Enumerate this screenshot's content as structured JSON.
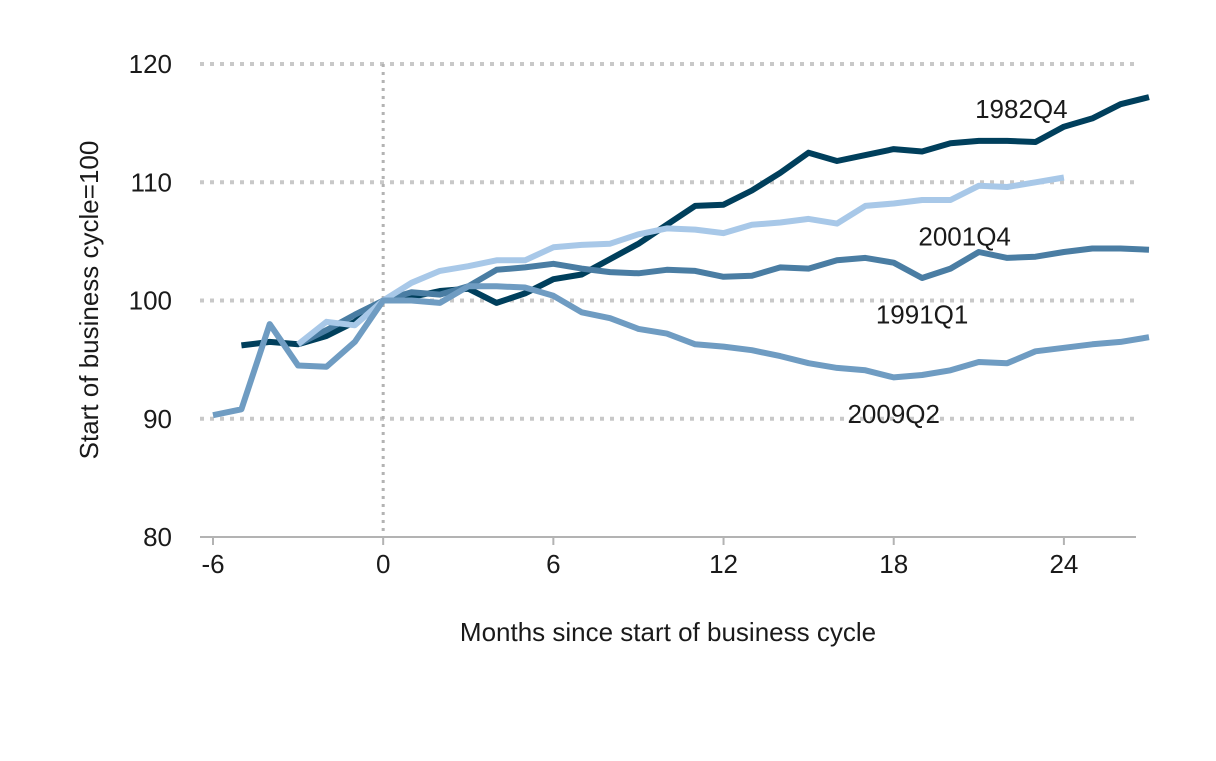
{
  "chart_data": {
    "type": "line",
    "title": "",
    "xlabel": "Months since start of business cycle",
    "ylabel": "Start of business cycle=100",
    "xlim": [
      -6,
      27
    ],
    "ylim": [
      80,
      120
    ],
    "x_ticks": [
      -6,
      0,
      6,
      12,
      18,
      24
    ],
    "x_tick_labels": [
      "-6",
      "0",
      "6",
      "12",
      "18",
      "24"
    ],
    "y_ticks": [
      80,
      90,
      100,
      110,
      120
    ],
    "y_tick_labels": [
      "80",
      "90",
      "100",
      "110",
      "120"
    ],
    "grid": "horizontal-dotted",
    "reference_line_x": 0,
    "legend": "direct-labels",
    "series": [
      {
        "name": "1982Q4",
        "color": "#003f5c",
        "x": [
          -5,
          -4,
          -3,
          -2,
          -1,
          0,
          1,
          2,
          3,
          4,
          5,
          6,
          7,
          8,
          9,
          10,
          11,
          12,
          13,
          14,
          15,
          16,
          17,
          18,
          19,
          20,
          21,
          22,
          23,
          24,
          25,
          26,
          27
        ],
        "values": [
          96.2,
          96.5,
          96.3,
          97.0,
          98.2,
          100.0,
          100.3,
          100.8,
          101.0,
          99.8,
          100.6,
          101.8,
          102.2,
          103.5,
          104.8,
          106.4,
          108.0,
          108.1,
          109.3,
          110.8,
          112.5,
          111.8,
          112.3,
          112.8,
          112.6,
          113.3,
          113.5,
          113.5,
          113.4,
          114.7,
          115.4,
          116.6,
          117.2
        ]
      },
      {
        "name": "1991Q1",
        "color": "#4a7da3",
        "x": [
          -3,
          -2,
          -1,
          0,
          1,
          2,
          3,
          4,
          5,
          6,
          7,
          8,
          9,
          10,
          11,
          12,
          13,
          14,
          15,
          16,
          17,
          18,
          19,
          20,
          21,
          22,
          23,
          24,
          25,
          26,
          27
        ],
        "values": [
          96.3,
          97.5,
          98.8,
          100.0,
          100.7,
          100.5,
          101.2,
          102.6,
          102.8,
          103.1,
          102.7,
          102.4,
          102.3,
          102.6,
          102.5,
          102.0,
          102.1,
          102.8,
          102.7,
          103.4,
          103.6,
          103.2,
          101.9,
          102.7,
          104.1,
          103.6,
          103.7,
          104.1,
          104.4,
          104.4,
          104.3
        ]
      },
      {
        "name": "2001Q4",
        "color": "#a8c8e8",
        "x": [
          -3,
          -2,
          -1,
          0,
          1,
          2,
          3,
          4,
          5,
          6,
          7,
          8,
          9,
          10,
          11,
          12,
          13,
          14,
          15,
          16,
          17,
          18,
          19,
          20,
          21,
          22,
          23,
          24
        ],
        "values": [
          96.3,
          98.2,
          97.9,
          100.0,
          101.5,
          102.5,
          102.9,
          103.4,
          103.4,
          104.5,
          104.7,
          104.8,
          105.6,
          106.1,
          106.0,
          105.7,
          106.4,
          106.6,
          106.9,
          106.5,
          108.0,
          108.2,
          108.5,
          108.5,
          109.7,
          109.6,
          110.0,
          110.4
        ]
      },
      {
        "name": "2009Q2",
        "color": "#6f9cc2",
        "x": [
          -6,
          -5,
          -4,
          -3,
          -2,
          -1,
          0,
          1,
          2,
          3,
          4,
          5,
          6,
          7,
          8,
          9,
          10,
          11,
          12,
          13,
          14,
          15,
          16,
          17,
          18,
          19,
          20,
          21,
          22,
          23,
          24,
          25,
          26,
          27
        ],
        "values": [
          90.3,
          90.8,
          98.0,
          94.5,
          94.4,
          96.5,
          100.0,
          100.0,
          99.8,
          101.2,
          101.2,
          101.1,
          100.4,
          99.0,
          98.5,
          97.6,
          97.2,
          96.3,
          96.1,
          95.8,
          95.3,
          94.7,
          94.3,
          94.1,
          93.5,
          93.7,
          94.1,
          94.8,
          94.7,
          95.7,
          96.0,
          96.3,
          96.5,
          96.9
        ]
      }
    ],
    "annotations": [
      {
        "series": "1982Q4",
        "text": "1982Q4",
        "x": 22.5,
        "y": 116.2
      },
      {
        "series": "2001Q4",
        "text": "2001Q4",
        "x": 20.5,
        "y": 105.4
      },
      {
        "series": "1991Q1",
        "text": "1991Q1",
        "x": 19.0,
        "y": 98.8
      },
      {
        "series": "2009Q2",
        "text": "2009Q2",
        "x": 18.0,
        "y": 90.4
      }
    ],
    "colors": {
      "grid": "#c8c8c8",
      "axis": "#b3b3b3",
      "reference_line": "#b3b3b3"
    }
  }
}
